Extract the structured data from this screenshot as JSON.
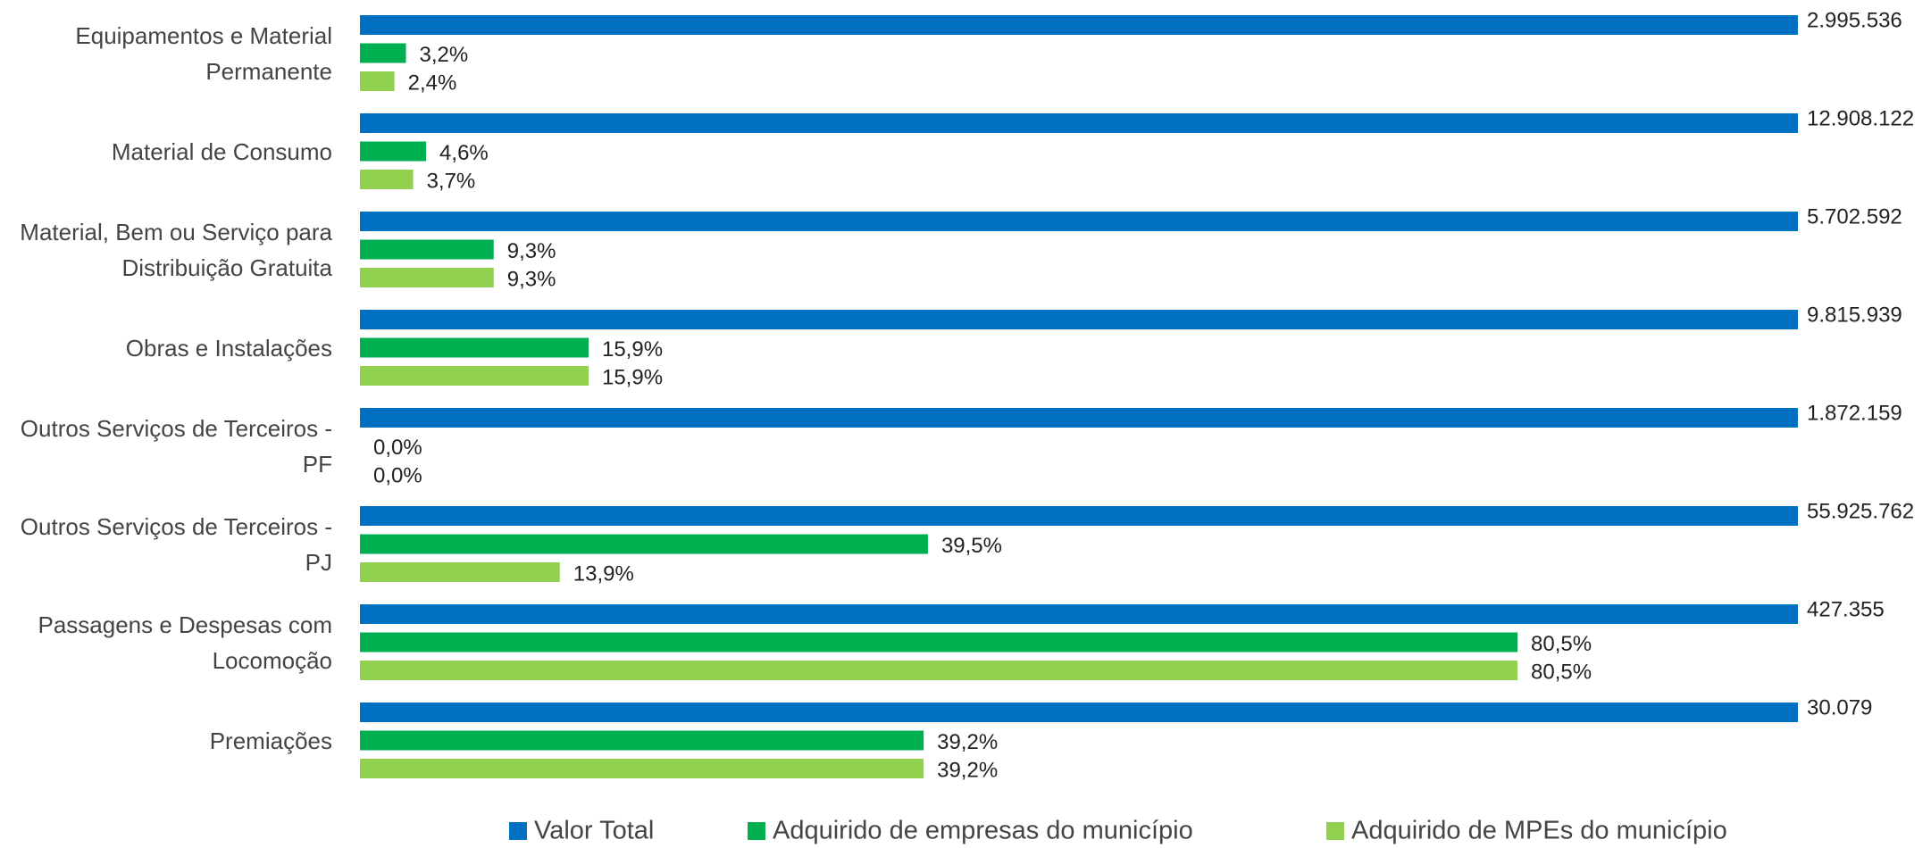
{
  "chart_data": {
    "type": "bar",
    "orientation": "horizontal",
    "categories": [
      "Equipamentos e Material Permanente",
      "Material de Consumo",
      "Material, Bem ou Serviço para Distribuição Gratuita",
      "Obras e Instalações",
      "Outros Serviços de Terceiros - PF",
      "Outros Serviços de Terceiros - PJ",
      "Passagens e Despesas com Locomoção",
      "Premiações"
    ],
    "xlim": [
      0,
      100
    ],
    "series": [
      {
        "name": "Valor Total",
        "color": "#0070c0",
        "values": [
          2995536,
          12908122,
          5702592,
          9815939,
          1872159,
          55925762,
          427355,
          30079
        ],
        "value_labels": [
          "2.995.536",
          "12.908.122",
          "5.702.592",
          "9.815.939",
          "1.872.159",
          "55.925.762",
          "427.355",
          "30.079"
        ]
      },
      {
        "name": "Adquirido de empresas do município",
        "color": "#00b050",
        "values": [
          3.2,
          4.6,
          9.3,
          15.9,
          0.0,
          39.5,
          80.5,
          39.2
        ],
        "value_labels": [
          "3,2%",
          "4,6%",
          "9,3%",
          "15,9%",
          "0,0%",
          "39,5%",
          "80,5%",
          "39,2%"
        ]
      },
      {
        "name": "Adquirido de MPEs do município",
        "color": "#92d050",
        "values": [
          2.4,
          3.7,
          9.3,
          15.9,
          0.0,
          13.9,
          80.5,
          39.2
        ],
        "value_labels": [
          "2,4%",
          "3,7%",
          "9,3%",
          "15,9%",
          "0,0%",
          "13,9%",
          "80,5%",
          "39,2%"
        ]
      }
    ],
    "legend": "bottom"
  }
}
